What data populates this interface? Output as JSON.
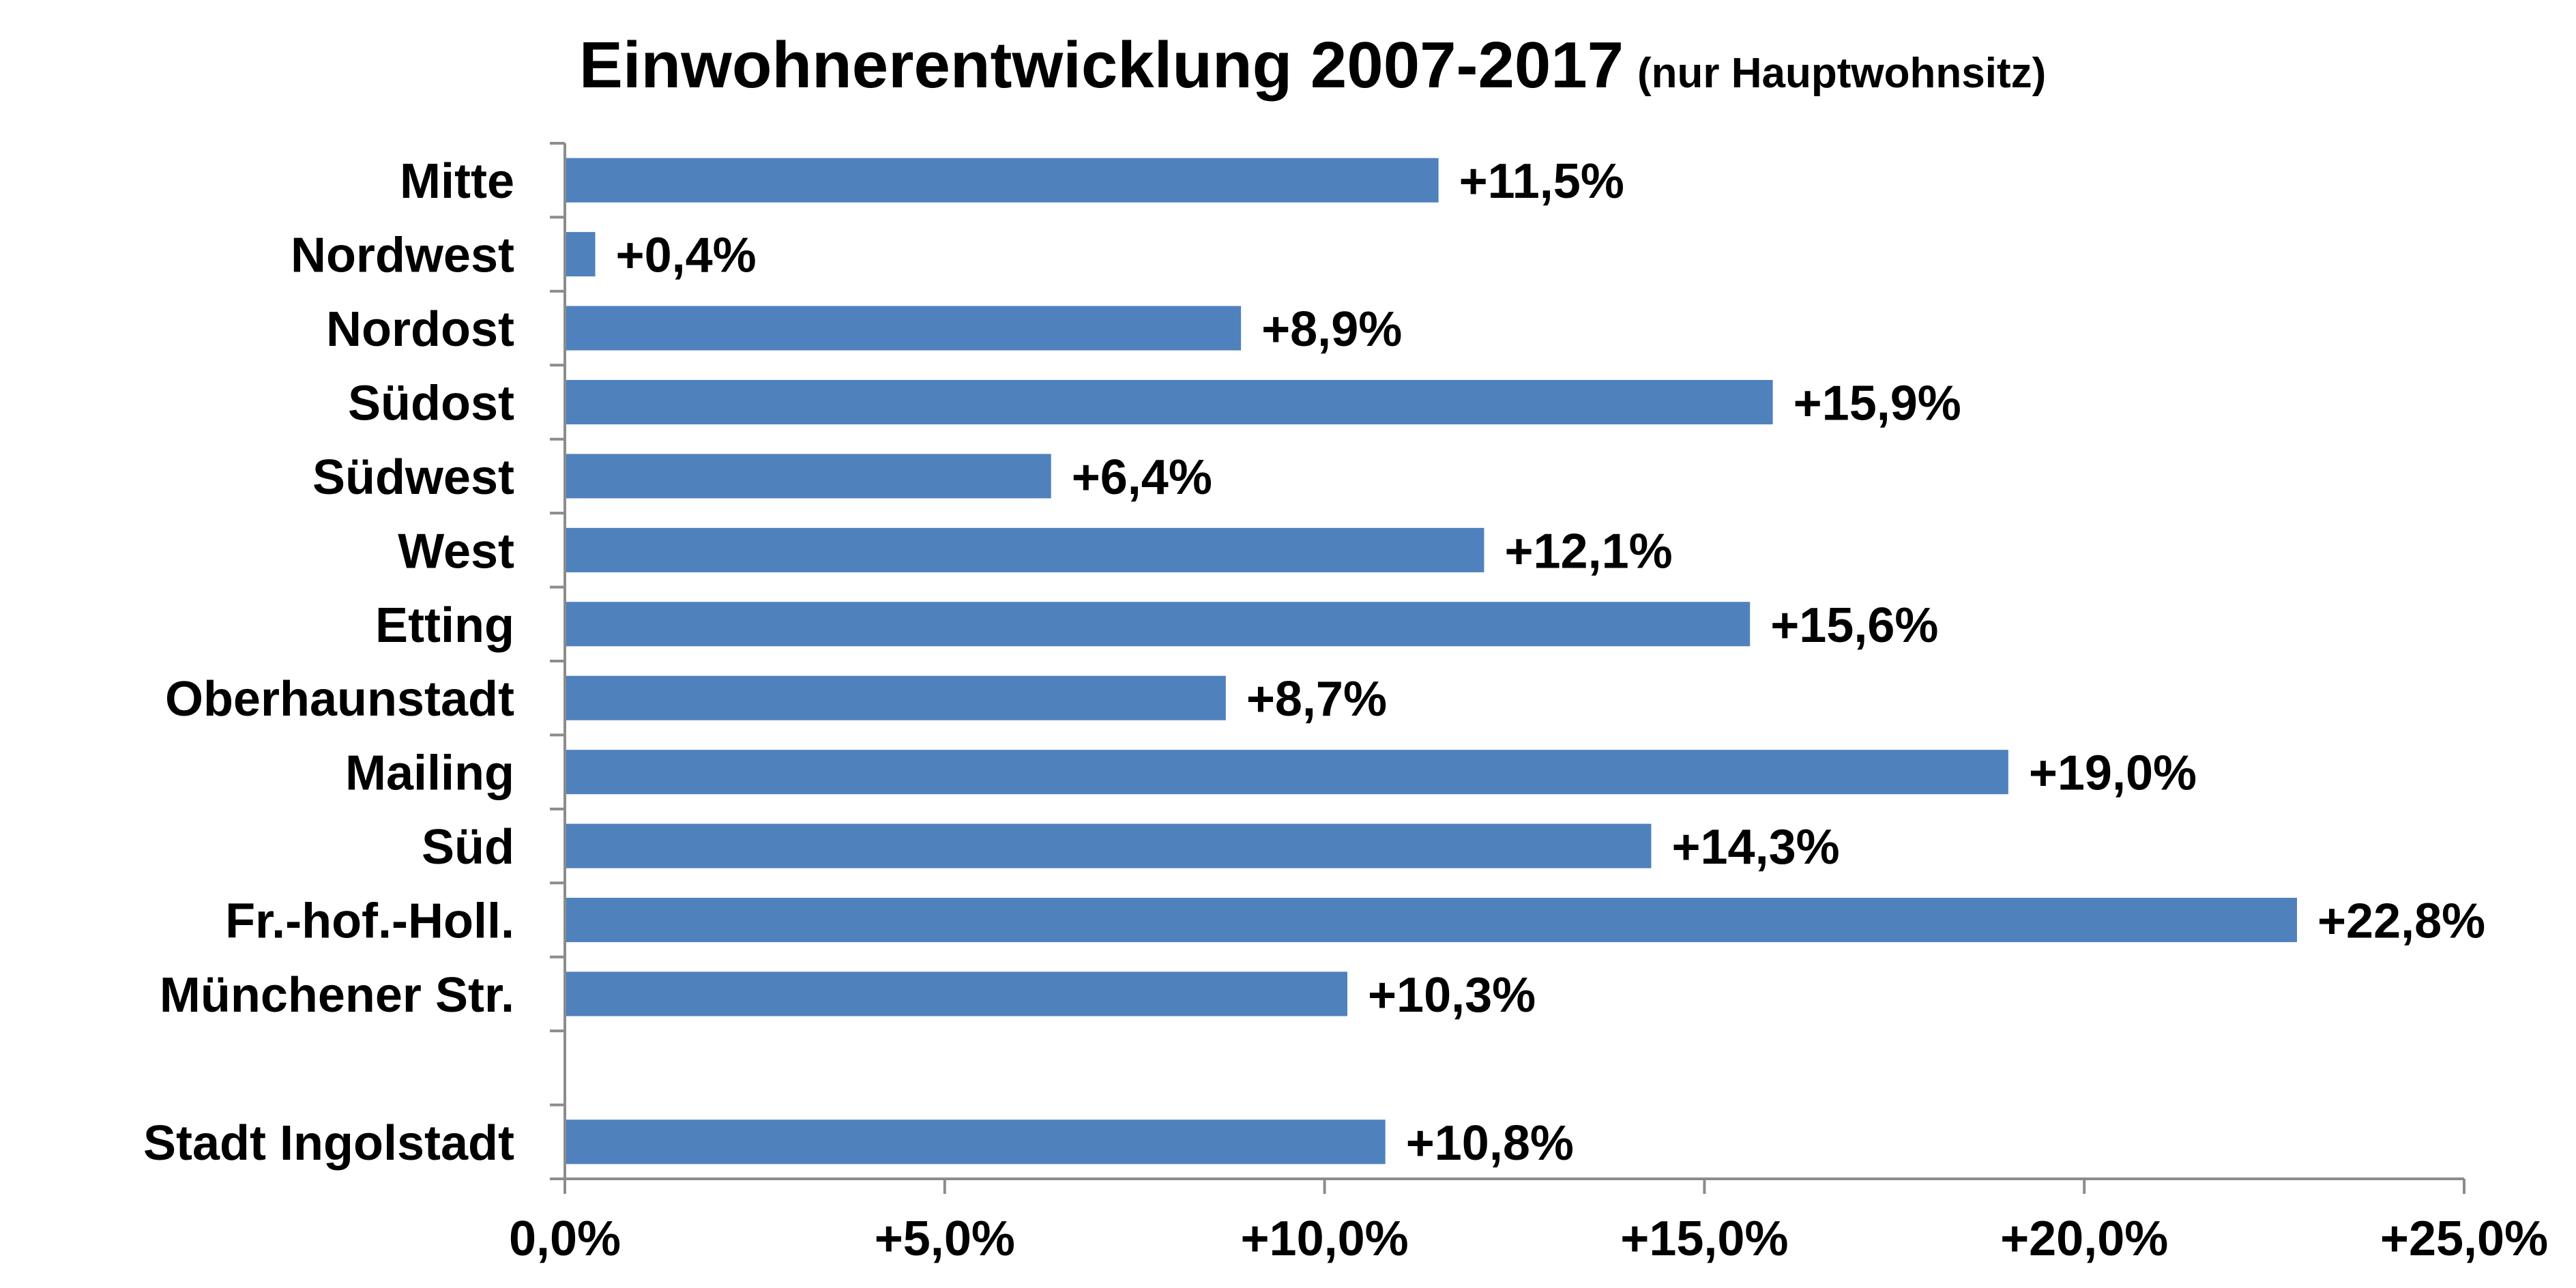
{
  "chart_data": {
    "type": "bar",
    "orientation": "horizontal",
    "title": "Einwohnerentwicklung 2007-2017",
    "subtitle": "(nur Hauptwohnsitz)",
    "xlabel": "",
    "ylabel": "",
    "xlim": [
      0,
      25
    ],
    "ticks": [
      0,
      5,
      10,
      15,
      20,
      25
    ],
    "tick_labels": [
      "0,0%",
      "+5,0%",
      "+10,0%",
      "+15,0%",
      "+20,0%",
      "+25,0%"
    ],
    "grid": false,
    "legend": "none",
    "bar_color": "#4f81bd",
    "categories": [
      "Mitte",
      "Nordwest",
      "Nordost",
      "Südost",
      "Südwest",
      "West",
      "Etting",
      "Oberhaunstadt",
      "Mailing",
      "Süd",
      "Fr.-hof.-Holl.",
      "Münchener Str.",
      "",
      "Stadt Ingolstadt"
    ],
    "values": [
      11.5,
      0.4,
      8.9,
      15.9,
      6.4,
      12.1,
      15.6,
      8.7,
      19.0,
      14.3,
      22.8,
      10.3,
      null,
      10.8
    ],
    "data_labels": [
      "+11,5%",
      "+0,4%",
      "+8,9%",
      "+15,9%",
      "+6,4%",
      "+12,1%",
      "+15,6%",
      "+8,7%",
      "+19,0%",
      "+14,3%",
      "+22,8%",
      "+10,3%",
      "",
      "+10,8%"
    ]
  }
}
